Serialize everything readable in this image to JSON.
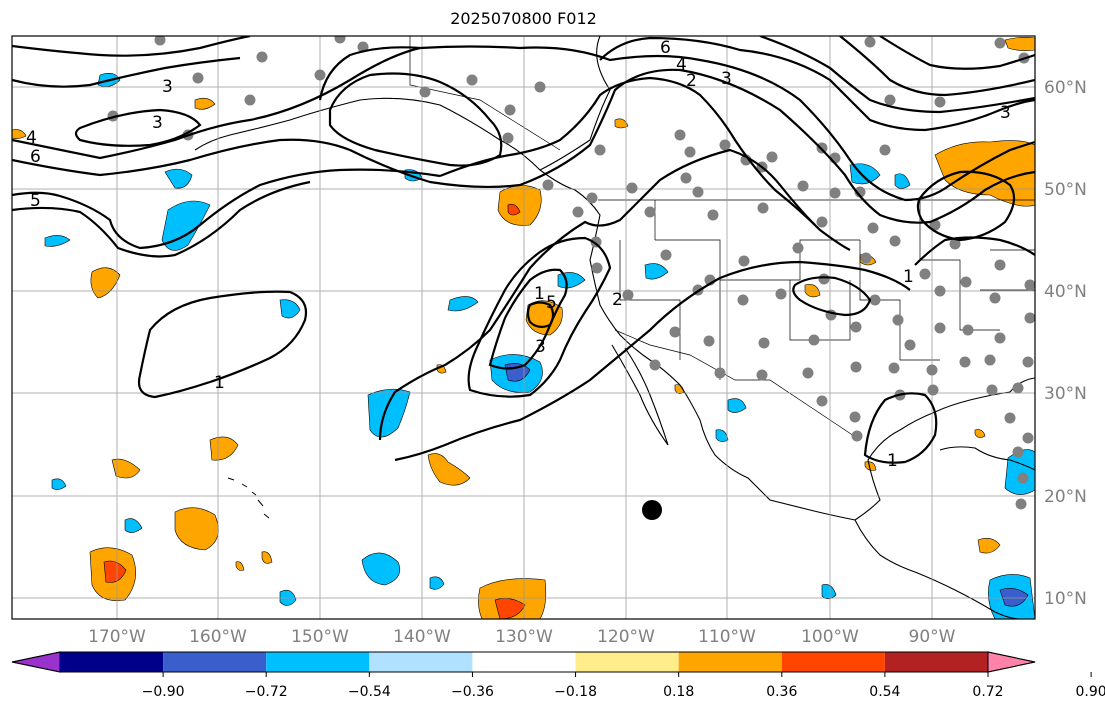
{
  "title": "2025070800 F012",
  "map": {
    "region": "North Pacific / North America",
    "lon_labels": [
      "170°W",
      "160°W",
      "150°W",
      "140°W",
      "130°W",
      "120°W",
      "110°W",
      "100°W",
      "90°W"
    ],
    "lat_labels": [
      "60°N",
      "50°N",
      "40°N",
      "30°N",
      "20°N",
      "10°N"
    ],
    "contour_labels": [
      "6",
      "4",
      "2",
      "3",
      "1",
      "3",
      "1",
      "2",
      "5",
      "3",
      "1",
      "1",
      "3",
      "5",
      "4",
      "6",
      "3"
    ],
    "grid": true
  },
  "colorbar": {
    "ticks": [
      "−0.90",
      "−0.72",
      "−0.54",
      "−0.36",
      "−0.18",
      "0.18",
      "0.36",
      "0.54",
      "0.72",
      "0.90"
    ],
    "colors": [
      "#9a32cd",
      "#00008b",
      "#3a5fcd",
      "#00bfff",
      "#b0e2ff",
      "#ffffff",
      "#ffec8b",
      "#ffa500",
      "#ff4500",
      "#b22222",
      "#ff82ab"
    ],
    "extend": "both"
  }
}
